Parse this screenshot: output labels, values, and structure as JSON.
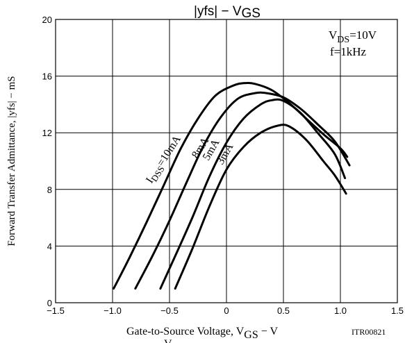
{
  "chart_data": {
    "type": "line",
    "title_parts": [
      "|yfs| − V",
      "GS"
    ],
    "xlabel_parts": [
      "Gate-to-Source Voltage, V",
      "GS",
      " − V"
    ],
    "ylabel": "Forward Transfer Admittance, |yfs|  −  mS",
    "xlim": [
      -1.5,
      1.5
    ],
    "ylim": [
      0,
      20
    ],
    "x_ticks": [
      "−1.5",
      "−1.0",
      "−0.5",
      "0",
      "0.5",
      "1.0",
      "1.5"
    ],
    "y_ticks": [
      "0",
      "4",
      "8",
      "12",
      "16",
      "20"
    ],
    "grid": true,
    "conditions": {
      "vds_parts": [
        "V",
        "DS",
        "=10V"
      ],
      "freq": "f=1kHz"
    },
    "code": "ITR00821",
    "bottom_cut_text": "V",
    "series": [
      {
        "name": "10mA",
        "label_parts": [
          "I",
          "DSS",
          "=10mA"
        ],
        "points": [
          [
            -0.99,
            1.0
          ],
          [
            -0.85,
            3.2
          ],
          [
            -0.7,
            5.7
          ],
          [
            -0.55,
            8.3
          ],
          [
            -0.4,
            10.9
          ],
          [
            -0.25,
            13.0
          ],
          [
            -0.1,
            14.6
          ],
          [
            0.05,
            15.3
          ],
          [
            0.15,
            15.5
          ],
          [
            0.25,
            15.45
          ],
          [
            0.4,
            15.0
          ],
          [
            0.55,
            14.1
          ],
          [
            0.7,
            13.0
          ],
          [
            0.85,
            11.9
          ],
          [
            1.0,
            10.9
          ],
          [
            1.06,
            10.3
          ]
        ]
      },
      {
        "name": "8mA",
        "label_parts": [
          "8mA"
        ],
        "points": [
          [
            -0.8,
            1.0
          ],
          [
            -0.65,
            3.3
          ],
          [
            -0.5,
            5.8
          ],
          [
            -0.35,
            8.5
          ],
          [
            -0.2,
            11.1
          ],
          [
            -0.05,
            13.1
          ],
          [
            0.1,
            14.4
          ],
          [
            0.25,
            14.8
          ],
          [
            0.35,
            14.8
          ],
          [
            0.5,
            14.5
          ],
          [
            0.65,
            13.7
          ],
          [
            0.8,
            12.6
          ],
          [
            0.95,
            11.4
          ],
          [
            1.08,
            9.7
          ]
        ]
      },
      {
        "name": "5mA",
        "label_parts": [
          "5mA"
        ],
        "points": [
          [
            -0.58,
            1.0
          ],
          [
            -0.45,
            3.3
          ],
          [
            -0.3,
            6.0
          ],
          [
            -0.15,
            8.9
          ],
          [
            0.0,
            11.3
          ],
          [
            0.15,
            13.0
          ],
          [
            0.3,
            14.0
          ],
          [
            0.4,
            14.3
          ],
          [
            0.5,
            14.25
          ],
          [
            0.65,
            13.4
          ],
          [
            0.8,
            12.0
          ],
          [
            0.95,
            10.5
          ],
          [
            1.04,
            8.8
          ]
        ]
      },
      {
        "name": "3mA",
        "label_parts": [
          "3mA"
        ],
        "points": [
          [
            -0.45,
            1.0
          ],
          [
            -0.3,
            3.8
          ],
          [
            -0.15,
            6.8
          ],
          [
            0.0,
            9.4
          ],
          [
            0.15,
            11.0
          ],
          [
            0.3,
            12.0
          ],
          [
            0.45,
            12.5
          ],
          [
            0.55,
            12.45
          ],
          [
            0.7,
            11.5
          ],
          [
            0.85,
            10.0
          ],
          [
            0.95,
            9.0
          ],
          [
            1.05,
            7.7
          ]
        ]
      }
    ]
  }
}
